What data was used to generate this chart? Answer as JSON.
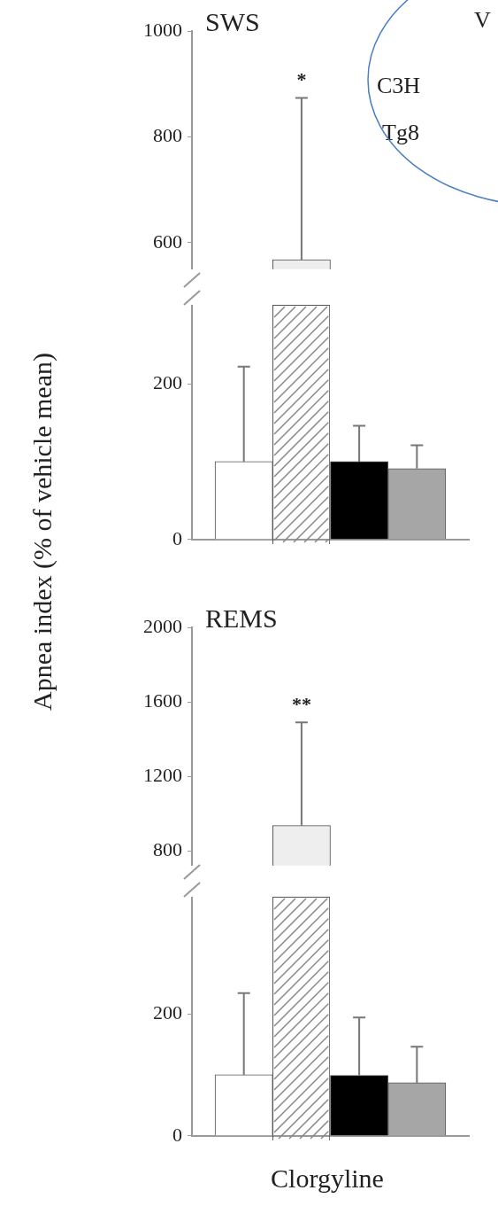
{
  "chart_data": [
    {
      "type": "bar",
      "title": "SWS",
      "categories": [
        null
      ],
      "values": [
        568
      ],
      "errors": [
        306
      ],
      "colors": [
        "#eeeeee"
      ],
      "ylim": [
        550,
        1000
      ],
      "yticks": [
        600,
        800,
        1000
      ],
      "tick_labels": "y",
      "annotations": [
        "*",
        "V",
        "C3H",
        "Tg8"
      ]
    },
    {
      "type": "bar",
      "ylabel": "Apnea index (% of vehicle mean)",
      "categories": [
        null,
        null,
        null,
        null
      ],
      "values": [
        100,
        null,
        100,
        91
      ],
      "errors": [
        122,
        null,
        46,
        30
      ],
      "colors": [
        "#ffffff",
        "#eeeeee",
        "#000000",
        "#a6a6a6"
      ],
      "ylim": [
        0,
        300
      ],
      "yticks": [
        0,
        200
      ],
      "tick_labels": "y"
    },
    {
      "type": "bar",
      "title": "REMS",
      "categories": [
        null
      ],
      "values": [
        935
      ],
      "errors": [
        555
      ],
      "colors": [
        "#eeeeee"
      ],
      "ylim": [
        720,
        2000
      ],
      "yticks": [
        800,
        1200,
        1600,
        2000
      ],
      "tick_labels": "y",
      "annotations": [
        "**"
      ]
    },
    {
      "type": "bar",
      "xlabel": "Clorgyline",
      "categories": [
        null,
        null,
        null,
        null
      ],
      "values": [
        100,
        null,
        99,
        87
      ],
      "errors": [
        134,
        null,
        95,
        59
      ],
      "colors": [
        "#ffffff",
        "#eeeeee",
        "#000000",
        "#a6a6a6"
      ],
      "ylim": [
        0,
        390
      ],
      "yticks": [
        0,
        200
      ],
      "tick_labels": "y"
    }
  ]
}
